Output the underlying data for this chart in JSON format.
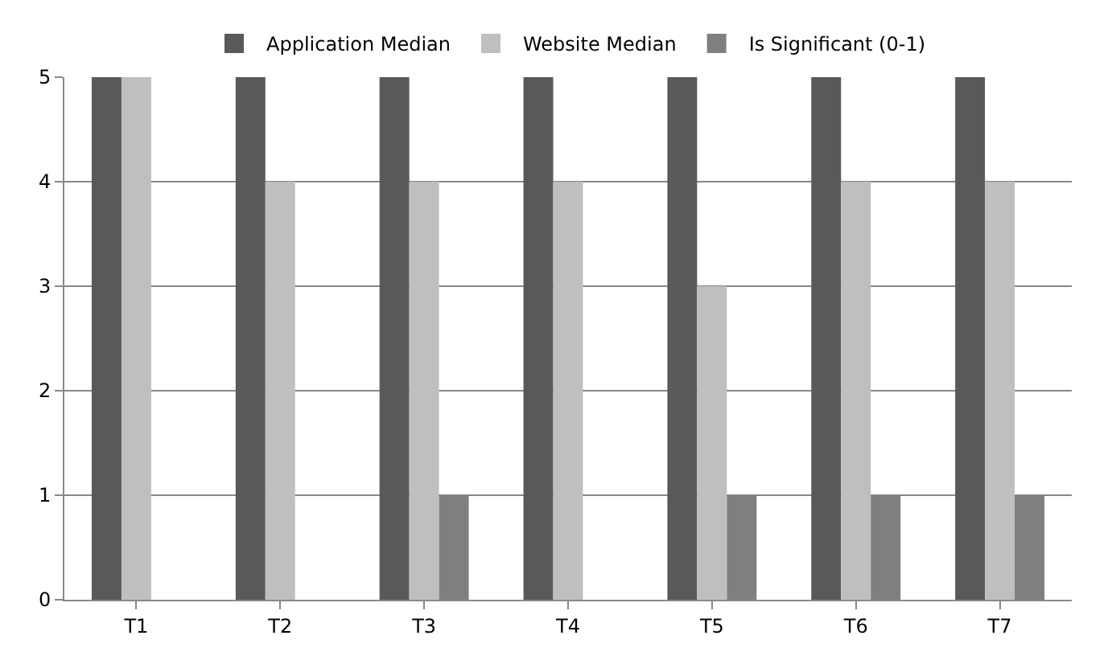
{
  "chart_data": {
    "type": "bar",
    "categories": [
      "T1",
      "T2",
      "T3",
      "T4",
      "T5",
      "T6",
      "T7"
    ],
    "series": [
      {
        "name": "Application Median",
        "color": "#595959",
        "values": [
          5,
          5,
          5,
          5,
          5,
          5,
          5
        ]
      },
      {
        "name": "Website Median",
        "color": "#bfbfbf",
        "values": [
          5,
          4,
          4,
          4,
          3,
          4,
          4
        ]
      },
      {
        "name": "Is Significant (0-1)",
        "color": "#7f7f7f",
        "values": [
          0,
          0,
          1,
          0,
          1,
          1,
          1
        ]
      }
    ],
    "ylim": [
      0,
      5
    ],
    "yticks": [
      0,
      1,
      2,
      3,
      4,
      5
    ],
    "grid": "y",
    "legend": "top"
  }
}
